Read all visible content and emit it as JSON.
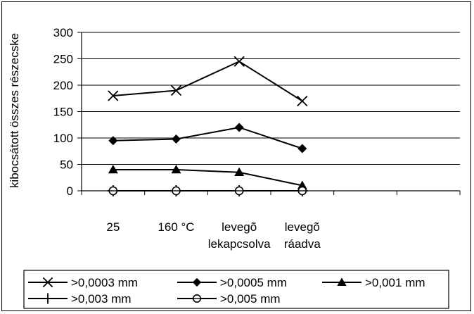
{
  "chart_data": {
    "type": "line",
    "ylabel": "kibocsátott összes részecske",
    "xlabel": "",
    "ylim": [
      0,
      300
    ],
    "yticks": [
      0,
      50,
      100,
      150,
      200,
      250,
      300
    ],
    "categories": [
      [
        "25"
      ],
      [
        "160 °C"
      ],
      [
        "levegõ",
        "lekapcsolva"
      ],
      [
        "levegõ",
        "ráadva"
      ]
    ],
    "grid": true,
    "legend_position": "bottom",
    "series": [
      {
        "name": ">0,0003 mm",
        "marker": "x",
        "values": [
          180,
          190,
          245,
          170
        ]
      },
      {
        "name": ">0,0005 mm",
        "marker": "diamond",
        "values": [
          95,
          98,
          120,
          80
        ]
      },
      {
        "name": ">0,001 mm",
        "marker": "triangle",
        "values": [
          40,
          40,
          35,
          10
        ]
      },
      {
        "name": ">0,003 mm",
        "marker": "plus",
        "values": [
          0,
          0,
          0,
          0
        ]
      },
      {
        "name": ">0,005 mm",
        "marker": "circle",
        "values": [
          0,
          0,
          0,
          0
        ]
      }
    ]
  }
}
